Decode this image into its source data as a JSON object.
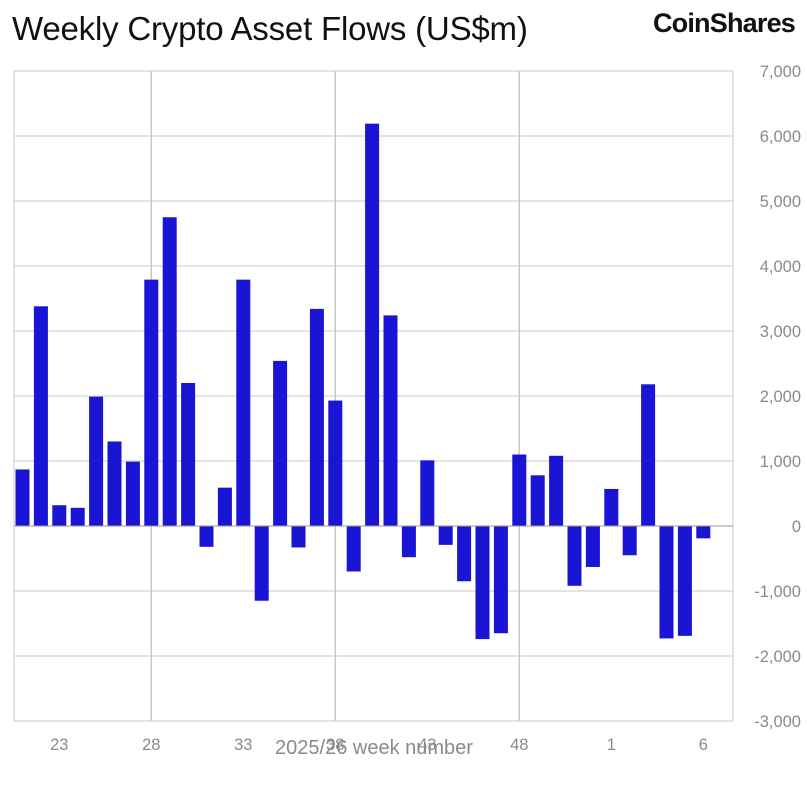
{
  "header": {
    "title": "Weekly Crypto Asset Flows (US$m)",
    "brand": "CoinShares"
  },
  "chart_data": {
    "type": "bar",
    "title": "Weekly Crypto Asset Flows (US$m)",
    "xlabel": "2025/26 week number",
    "ylabel": "",
    "ylim": [
      -3000,
      7000
    ],
    "yticks": [
      "7,000",
      "6,000",
      "5,000",
      "4,000",
      "3,000",
      "2,000",
      "1,000",
      "0",
      "-1,000",
      "-2,000",
      "-3,000"
    ],
    "ytick_values": [
      7000,
      6000,
      5000,
      4000,
      3000,
      2000,
      1000,
      0,
      -1000,
      -2000,
      -3000
    ],
    "y_axis_position": "right",
    "grid": true,
    "bar_color": "#1a14d4",
    "categories": [
      "21",
      "22",
      "23",
      "24",
      "25",
      "26",
      "27",
      "28",
      "29",
      "30",
      "31",
      "32",
      "33",
      "34",
      "35",
      "36",
      "37",
      "38",
      "39",
      "40",
      "41",
      "42",
      "43",
      "44",
      "45",
      "46",
      "47",
      "48",
      "49",
      "50",
      "51",
      "52",
      "1",
      "2",
      "3",
      "4",
      "5",
      "6",
      "7"
    ],
    "values": [
      870,
      3380,
      320,
      280,
      1990,
      1300,
      990,
      3790,
      4750,
      2200,
      -320,
      590,
      3790,
      -1150,
      2540,
      -330,
      3340,
      1930,
      -700,
      6190,
      3240,
      -480,
      1010,
      -290,
      -850,
      -1740,
      -1650,
      1100,
      780,
      1080,
      -920,
      -630,
      570,
      -450,
      2180,
      -1730,
      -1690,
      -190,
      0
    ],
    "xtick_labels": [
      "23",
      "28",
      "33",
      "38",
      "43",
      "48",
      "1",
      "6"
    ],
    "xtick_categories": [
      "23",
      "28",
      "33",
      "38",
      "43",
      "48",
      "1",
      "6"
    ]
  }
}
